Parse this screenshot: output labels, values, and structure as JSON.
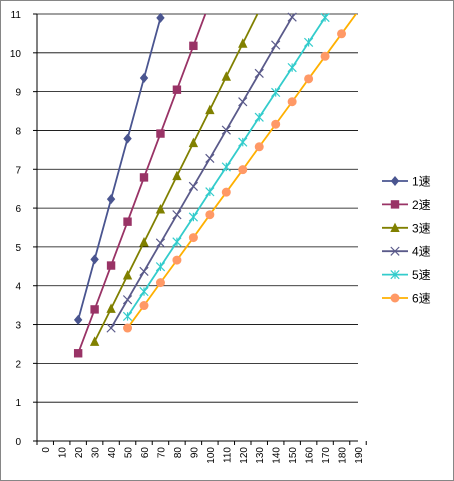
{
  "chart_data": {
    "type": "line",
    "title": "",
    "xlabel": "",
    "ylabel": "",
    "xlim": [
      0,
      190
    ],
    "ylim": [
      0,
      11
    ],
    "x_ticks": [
      "0",
      "10",
      "20",
      "30",
      "40",
      "50",
      "60",
      "70",
      "80",
      "90",
      "100",
      "110",
      "120",
      "130",
      "140",
      "150",
      "160",
      "170",
      "180",
      "190"
    ],
    "y_ticks": [
      "0",
      "1",
      "2",
      "3",
      "4",
      "5",
      "6",
      "7",
      "8",
      "9",
      "10",
      "11"
    ],
    "grid": "horizontal",
    "legend_position": "right",
    "series": [
      {
        "name": "1速",
        "color": "#4a5590",
        "marker": "diamond",
        "x": [
          20,
          30,
          40,
          50,
          60,
          70
        ],
        "y": [
          3.12,
          4.68,
          6.23,
          7.79,
          9.35,
          10.9
        ]
      },
      {
        "name": "2速",
        "color": "#993366",
        "marker": "square",
        "x": [
          20,
          30,
          40,
          50,
          60,
          70,
          80,
          90
        ],
        "y": [
          2.26,
          3.39,
          4.52,
          5.65,
          6.79,
          7.92,
          9.05,
          10.18
        ]
      },
      {
        "name": "3速",
        "color": "#808000",
        "marker": "triangle",
        "x": [
          30,
          40,
          50,
          60,
          70,
          80,
          90,
          100,
          110,
          120
        ],
        "y": [
          2.56,
          3.41,
          4.27,
          5.12,
          5.97,
          6.83,
          7.68,
          8.53,
          9.39,
          10.24
        ]
      },
      {
        "name": "4速",
        "color": "#5a5a8a",
        "marker": "x",
        "x": [
          40,
          50,
          60,
          70,
          80,
          90,
          100,
          110,
          120,
          130,
          140,
          150
        ],
        "y": [
          2.91,
          3.64,
          4.37,
          5.1,
          5.83,
          6.56,
          7.28,
          8.01,
          8.74,
          9.47,
          10.2,
          10.92
        ]
      },
      {
        "name": "5速",
        "color": "#33cccc",
        "marker": "star",
        "x": [
          50,
          60,
          70,
          80,
          90,
          100,
          110,
          120,
          130,
          140,
          150,
          160,
          170
        ],
        "y": [
          3.21,
          3.85,
          4.49,
          5.13,
          5.77,
          6.42,
          7.06,
          7.7,
          8.34,
          8.98,
          9.62,
          10.27,
          10.91
        ]
      },
      {
        "name": "6速",
        "color": "#ff9966",
        "line_color": "#ffb000",
        "marker": "circle",
        "x": [
          50,
          60,
          70,
          80,
          90,
          100,
          110,
          120,
          130,
          140,
          150,
          160,
          170,
          180
        ],
        "y": [
          2.91,
          3.49,
          4.08,
          4.66,
          5.24,
          5.83,
          6.41,
          6.99,
          7.58,
          8.16,
          8.74,
          9.33,
          9.91,
          10.49
        ]
      }
    ]
  }
}
